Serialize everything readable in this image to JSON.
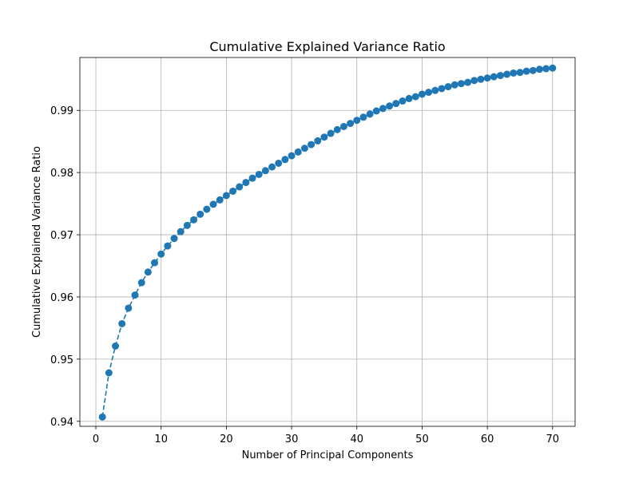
{
  "chart_data": {
    "type": "line",
    "title": "Cumulative Explained Variance Ratio",
    "xlabel": "Number of Principal Components",
    "ylabel": "Cumulative Explained Variance Ratio",
    "xlim": [
      -2.45,
      73.45
    ],
    "ylim": [
      0.9392,
      0.9985
    ],
    "x_ticks": [
      0,
      10,
      20,
      30,
      40,
      50,
      60,
      70
    ],
    "y_ticks": [
      0.94,
      0.95,
      0.96,
      0.97,
      0.98,
      0.99
    ],
    "y_tick_labels": [
      "0.94",
      "0.95",
      "0.96",
      "0.97",
      "0.98",
      "0.99"
    ],
    "grid": true,
    "line_style": "dashed",
    "marker": "circle",
    "color": "#1f77b4",
    "series": [
      {
        "x": [
          1,
          2,
          3,
          4,
          5,
          6,
          7,
          8,
          9,
          10,
          11,
          12,
          13,
          14,
          15,
          16,
          17,
          18,
          19,
          20,
          21,
          22,
          23,
          24,
          25,
          26,
          27,
          28,
          29,
          30,
          31,
          32,
          33,
          34,
          35,
          36,
          37,
          38,
          39,
          40,
          41,
          42,
          43,
          44,
          45,
          46,
          47,
          48,
          49,
          50,
          51,
          52,
          53,
          54,
          55,
          56,
          57,
          58,
          59,
          60,
          61,
          62,
          63,
          64,
          65,
          66,
          67,
          68,
          69,
          70
        ],
        "values": [
          0.9407,
          0.9478,
          0.9521,
          0.9557,
          0.9582,
          0.9603,
          0.9623,
          0.964,
          0.9655,
          0.9669,
          0.9682,
          0.9694,
          0.9705,
          0.9715,
          0.9724,
          0.9733,
          0.9741,
          0.9749,
          0.9756,
          0.9763,
          0.977,
          0.9777,
          0.9784,
          0.9791,
          0.9797,
          0.9803,
          0.9809,
          0.9815,
          0.9821,
          0.9827,
          0.9833,
          0.9839,
          0.9845,
          0.9851,
          0.9857,
          0.9863,
          0.9869,
          0.9874,
          0.9879,
          0.9884,
          0.9889,
          0.9894,
          0.9899,
          0.9903,
          0.9907,
          0.9911,
          0.9915,
          0.9919,
          0.9922,
          0.9926,
          0.9929,
          0.9932,
          0.9935,
          0.9938,
          0.9941,
          0.9943,
          0.9945,
          0.9948,
          0.995,
          0.9952,
          0.9954,
          0.9956,
          0.9958,
          0.996,
          0.9961,
          0.9963,
          0.9964,
          0.9966,
          0.9967,
          0.9968
        ]
      }
    ]
  }
}
